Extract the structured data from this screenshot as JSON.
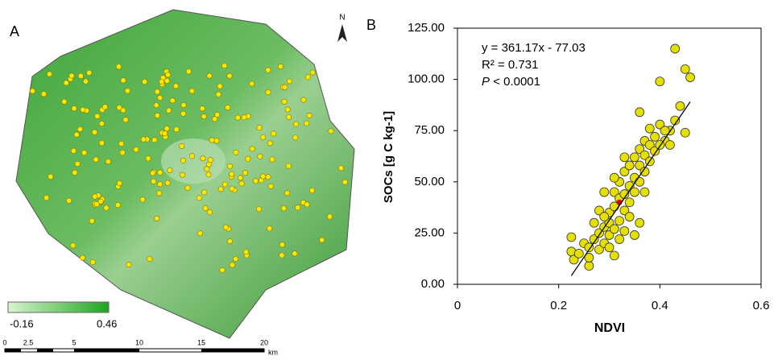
{
  "panel_a": {
    "label": "A",
    "north": "N",
    "legend": {
      "min": -0.16,
      "max": 0.46
    },
    "scale_bar": {
      "ticks": [
        "0",
        "2.5",
        "5",
        "10",
        "15",
        "20"
      ],
      "unit": "km"
    }
  },
  "chart_data": {
    "type": "scatter",
    "label": "B",
    "x_label": "NDVI",
    "y_label": "SOCs [g C kg-1]",
    "annotations": [
      "y = 361.17x - 77.03",
      "R² = 0.731"
    ],
    "p_annotation": {
      "symbol": "P",
      "text": "< 0.0001"
    },
    "xlim": [
      0,
      0.6
    ],
    "xticks": [
      0,
      0.2,
      0.4,
      0.6
    ],
    "ylim": [
      0,
      125
    ],
    "yticks": [
      {
        "value": 0,
        "label": "0.00"
      },
      {
        "value": 25,
        "label": "25.00"
      },
      {
        "value": 50,
        "label": "50.00"
      },
      {
        "value": 75,
        "label": "75.00"
      },
      {
        "value": 100,
        "label": "100.00"
      },
      {
        "value": 125,
        "label": "125.00"
      }
    ],
    "series": [
      {
        "color": "#e6e000",
        "x": [
          0.43,
          0.45,
          0.46,
          0.4,
          0.44,
          0.36,
          0.42,
          0.43,
          0.45,
          0.41,
          0.31,
          0.26,
          0.225,
          0.225,
          0.23,
          0.24,
          0.25,
          0.26,
          0.27,
          0.28,
          0.28,
          0.29,
          0.29,
          0.3,
          0.3,
          0.3,
          0.31,
          0.31,
          0.31,
          0.32,
          0.32,
          0.32,
          0.33,
          0.33,
          0.33,
          0.34,
          0.34,
          0.34,
          0.35,
          0.35,
          0.35,
          0.36,
          0.36,
          0.36,
          0.37,
          0.37,
          0.37,
          0.38,
          0.38,
          0.38,
          0.39,
          0.39,
          0.4,
          0.4,
          0.41,
          0.42,
          0.29,
          0.27,
          0.33,
          0.35,
          0.36,
          0.28,
          0.32,
          0.26,
          0.3,
          0.34,
          0.37,
          0.31,
          0.29,
          0.33
        ],
        "values": [
          115,
          105,
          101,
          99,
          87,
          84,
          75,
          80,
          74,
          70,
          14,
          9,
          23,
          16,
          12,
          15,
          20,
          18,
          22,
          17,
          25,
          20,
          28,
          24,
          30,
          35,
          27,
          38,
          45,
          31,
          42,
          50,
          36,
          44,
          55,
          40,
          48,
          58,
          45,
          52,
          62,
          50,
          58,
          66,
          55,
          63,
          70,
          60,
          68,
          76,
          65,
          72,
          68,
          78,
          75,
          68,
          45,
          30,
          26,
          24,
          30,
          36,
          22,
          13,
          18,
          33,
          45,
          52,
          33,
          62
        ]
      },
      {
        "color": "#d00000",
        "x": [
          0.32
        ],
        "values": [
          40
        ]
      }
    ],
    "trendline": {
      "color": "#000000",
      "x": [
        0.225,
        0.46
      ],
      "y": [
        4.2,
        89.1
      ]
    }
  }
}
